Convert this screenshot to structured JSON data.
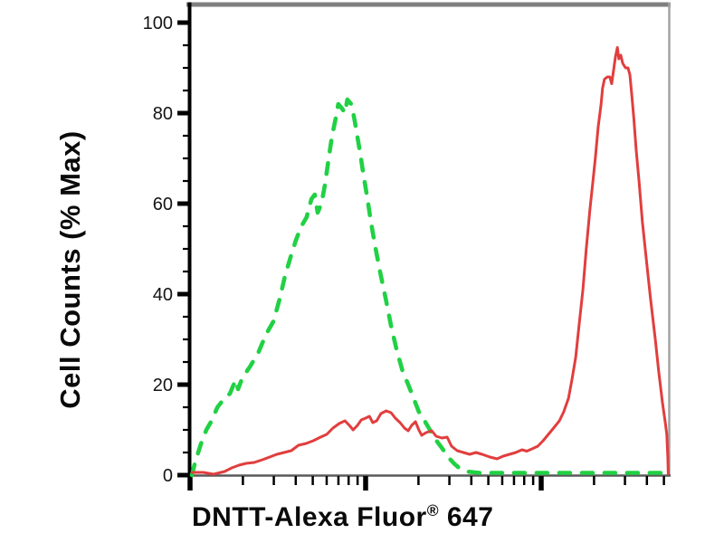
{
  "chart_data": {
    "type": "line",
    "subtype": "flow-cytometry-histogram-overlay",
    "title": "",
    "xlabel": "DNTT-Alexa Fluor® 647",
    "ylabel": "Cell Counts (% Max)",
    "grid": false,
    "legend": "none",
    "x_axis": {
      "scale": "log",
      "visible_decades": 2.73,
      "decade_fraction_of_width": 0.36604,
      "tick_labels": []
    },
    "y_axis": {
      "min": 0,
      "max": 100,
      "major_ticks": [
        0,
        20,
        40,
        60,
        80,
        100
      ],
      "tick_labels": [
        "0",
        "20",
        "40",
        "60",
        "80",
        "100"
      ],
      "minor_tick_step": 5
    },
    "series": [
      {
        "name": "green dashed curve",
        "style": "dashed",
        "color": "#21d144",
        "points": [
          [
            0.4,
            0
          ],
          [
            1.1,
            3
          ],
          [
            2.3,
            7
          ],
          [
            3.4,
            10
          ],
          [
            4.5,
            12
          ],
          [
            5.7,
            15
          ],
          [
            7.2,
            17
          ],
          [
            8.3,
            18
          ],
          [
            9.1,
            20
          ],
          [
            9.6,
            21
          ],
          [
            10.0,
            19
          ],
          [
            10.9,
            21.5
          ],
          [
            12.5,
            24
          ],
          [
            14.2,
            27
          ],
          [
            15.8,
            31
          ],
          [
            17.4,
            34
          ],
          [
            18.7,
            39
          ],
          [
            19.8,
            44
          ],
          [
            20.9,
            48
          ],
          [
            22.1,
            52
          ],
          [
            23.2,
            55
          ],
          [
            24.3,
            57
          ],
          [
            25.3,
            61
          ],
          [
            26.0,
            62
          ],
          [
            26.6,
            58
          ],
          [
            27.4,
            60
          ],
          [
            28.1,
            64
          ],
          [
            28.9,
            70
          ],
          [
            29.6,
            75
          ],
          [
            30.4,
            79
          ],
          [
            30.9,
            82
          ],
          [
            31.7,
            81
          ],
          [
            32.3,
            80
          ],
          [
            32.8,
            83
          ],
          [
            33.6,
            82
          ],
          [
            34.2,
            79
          ],
          [
            34.7,
            76
          ],
          [
            35.5,
            71
          ],
          [
            36.2,
            66
          ],
          [
            37.0,
            61
          ],
          [
            37.7,
            56
          ],
          [
            38.7,
            50
          ],
          [
            39.6,
            45
          ],
          [
            40.8,
            39
          ],
          [
            41.9,
            33
          ],
          [
            43.0,
            28
          ],
          [
            44.3,
            23
          ],
          [
            45.5,
            20
          ],
          [
            46.6,
            17
          ],
          [
            47.7,
            14
          ],
          [
            48.9,
            12
          ],
          [
            50.0,
            10
          ],
          [
            51.1,
            8
          ],
          [
            52.5,
            6
          ],
          [
            53.8,
            4
          ],
          [
            55.1,
            2.5
          ],
          [
            56.2,
            1.5
          ],
          [
            57.5,
            0.8
          ],
          [
            60.4,
            0.5
          ],
          [
            66.0,
            0.5
          ],
          [
            73.6,
            0.5
          ],
          [
            83.0,
            0.5
          ],
          [
            92.5,
            0.5
          ],
          [
            99.6,
            0.5
          ]
        ]
      },
      {
        "name": "red solid curve",
        "style": "solid",
        "color": "#e13e3e",
        "points": [
          [
            0.4,
            0.6
          ],
          [
            2.8,
            0.6
          ],
          [
            4.9,
            0.2
          ],
          [
            7.2,
            0.8
          ],
          [
            8.7,
            1.6
          ],
          [
            10.2,
            2.2
          ],
          [
            11.7,
            2.6
          ],
          [
            13.4,
            2.8
          ],
          [
            15.1,
            3.4
          ],
          [
            16.6,
            4.0
          ],
          [
            18.1,
            4.6
          ],
          [
            19.6,
            5.0
          ],
          [
            21.1,
            5.4
          ],
          [
            22.6,
            6.6
          ],
          [
            24.2,
            7.0
          ],
          [
            25.7,
            7.6
          ],
          [
            27.2,
            8.4
          ],
          [
            28.5,
            9.0
          ],
          [
            29.8,
            10.4
          ],
          [
            31.1,
            11.4
          ],
          [
            32.3,
            12.0
          ],
          [
            33.2,
            11.0
          ],
          [
            34.0,
            10.0
          ],
          [
            34.9,
            11.0
          ],
          [
            35.7,
            12.2
          ],
          [
            36.6,
            12.6
          ],
          [
            37.4,
            13.0
          ],
          [
            38.1,
            11.6
          ],
          [
            38.9,
            12.0
          ],
          [
            39.8,
            13.6
          ],
          [
            40.9,
            14.2
          ],
          [
            41.9,
            13.8
          ],
          [
            42.8,
            12.6
          ],
          [
            43.8,
            11.6
          ],
          [
            44.7,
            10.4
          ],
          [
            45.5,
            9.8
          ],
          [
            46.2,
            11.0
          ],
          [
            47.0,
            11.8
          ],
          [
            47.7,
            10.0
          ],
          [
            48.3,
            8.8
          ],
          [
            49.2,
            9.4
          ],
          [
            50.4,
            9.8
          ],
          [
            51.3,
            8.6
          ],
          [
            52.5,
            8.2
          ],
          [
            53.6,
            8.4
          ],
          [
            54.5,
            6.4
          ],
          [
            55.7,
            5.4
          ],
          [
            57.0,
            5.0
          ],
          [
            58.3,
            4.6
          ],
          [
            59.6,
            5.0
          ],
          [
            60.9,
            4.6
          ],
          [
            62.5,
            4.0
          ],
          [
            64.0,
            3.6
          ],
          [
            65.3,
            4.2
          ],
          [
            66.6,
            4.6
          ],
          [
            67.9,
            5.0
          ],
          [
            69.2,
            5.6
          ],
          [
            70.2,
            5.3
          ],
          [
            71.3,
            5.8
          ],
          [
            72.5,
            6.4
          ],
          [
            73.6,
            7.6
          ],
          [
            74.7,
            9.0
          ],
          [
            75.8,
            10.4
          ],
          [
            77.0,
            12.0
          ],
          [
            77.9,
            14.0
          ],
          [
            78.9,
            17.0
          ],
          [
            79.6,
            21.0
          ],
          [
            80.4,
            26.0
          ],
          [
            81.1,
            33.0
          ],
          [
            81.9,
            41.0
          ],
          [
            82.6,
            50.0
          ],
          [
            83.4,
            59.0
          ],
          [
            84.0,
            65.0
          ],
          [
            84.5,
            70.0
          ],
          [
            85.1,
            77.0
          ],
          [
            85.7,
            82.0
          ],
          [
            86.0,
            85.5
          ],
          [
            86.4,
            87.5
          ],
          [
            87.0,
            88.0
          ],
          [
            87.5,
            88.0
          ],
          [
            87.9,
            86.5
          ],
          [
            88.3,
            89.5
          ],
          [
            88.7,
            92.5
          ],
          [
            89.1,
            94.5
          ],
          [
            89.4,
            92.0
          ],
          [
            89.8,
            92.8
          ],
          [
            90.2,
            91.0
          ],
          [
            90.8,
            90.0
          ],
          [
            91.3,
            90.0
          ],
          [
            91.7,
            88.5
          ],
          [
            92.1,
            84.0
          ],
          [
            92.5,
            79.0
          ],
          [
            93.0,
            72.0
          ],
          [
            93.6,
            65.0
          ],
          [
            94.3,
            56.0
          ],
          [
            95.1,
            48.0
          ],
          [
            96.0,
            39.0
          ],
          [
            97.0,
            30.0
          ],
          [
            97.7,
            23.0
          ],
          [
            98.5,
            16.0
          ],
          [
            99.1,
            11.5
          ],
          [
            99.4,
            9.0
          ],
          [
            99.6,
            4.0
          ],
          [
            99.7,
            0.3
          ]
        ]
      }
    ],
    "frame_colors": {
      "top_border": "#7f7f7f",
      "right_border": "#a3a3a3",
      "bottom_axis": "#5a5a5a",
      "left_axis": "#000000",
      "tick_color": "#000000",
      "tick_label_color": "#141414"
    }
  }
}
